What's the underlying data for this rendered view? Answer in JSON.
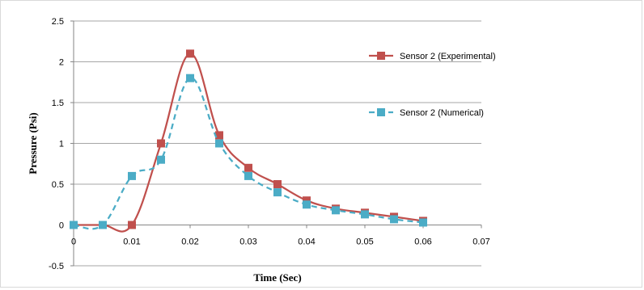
{
  "chart_data": {
    "type": "line",
    "xlabel": "Time (Sec)",
    "ylabel": "Pressure (Psi)",
    "xlim": [
      0,
      0.07
    ],
    "ylim": [
      -0.5,
      2.5
    ],
    "x_ticks": [
      "0",
      "0.01",
      "0.02",
      "0.03",
      "0.04",
      "0.05",
      "0.06",
      "0.07"
    ],
    "y_ticks": [
      "-0.5",
      "0",
      "0.5",
      "1",
      "1.5",
      "2",
      "2.5"
    ],
    "grid": "horizontal",
    "legend_position": "right",
    "series": [
      {
        "name": "Sensor 2 (Experimental)",
        "color": "#C0504D",
        "line_style": "solid",
        "marker": "square",
        "points": [
          [
            0,
            0
          ],
          [
            0.005,
            0
          ],
          [
            0.01,
            0
          ],
          [
            0.015,
            1.0
          ],
          [
            0.02,
            2.1
          ],
          [
            0.025,
            1.1
          ],
          [
            0.03,
            0.7
          ],
          [
            0.035,
            0.5
          ],
          [
            0.04,
            0.3
          ],
          [
            0.045,
            0.2
          ],
          [
            0.05,
            0.15
          ],
          [
            0.055,
            0.1
          ],
          [
            0.06,
            0.05
          ]
        ]
      },
      {
        "name": "Sensor 2 (Numerical)",
        "color": "#4BACC6",
        "line_style": "dashed",
        "marker": "square",
        "points": [
          [
            0,
            0
          ],
          [
            0.005,
            0
          ],
          [
            0.01,
            0.6
          ],
          [
            0.015,
            0.8
          ],
          [
            0.02,
            1.8
          ],
          [
            0.025,
            1.0
          ],
          [
            0.03,
            0.6
          ],
          [
            0.035,
            0.4
          ],
          [
            0.04,
            0.25
          ],
          [
            0.045,
            0.18
          ],
          [
            0.05,
            0.13
          ],
          [
            0.055,
            0.07
          ],
          [
            0.06,
            0.03
          ]
        ]
      }
    ]
  }
}
